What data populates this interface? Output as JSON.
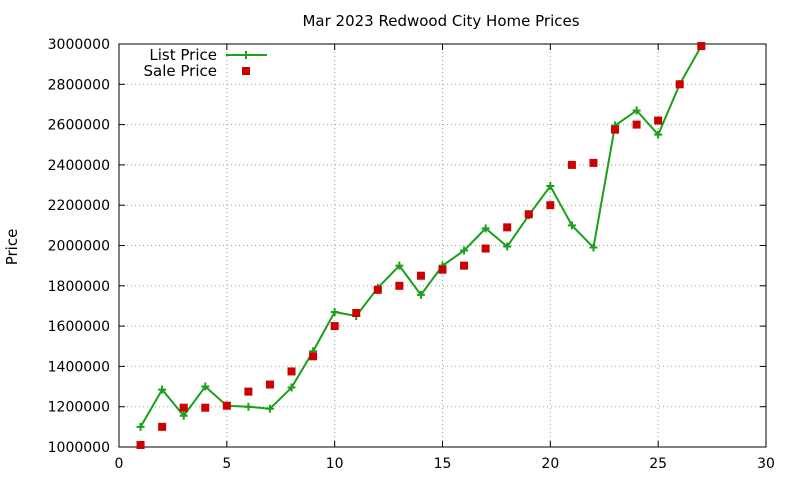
{
  "chart_data": {
    "type": "line",
    "title": "Mar 2023 Redwood City Home Prices",
    "xlabel": "",
    "ylabel": "Price",
    "xlim": [
      0,
      30
    ],
    "ylim": [
      1000000,
      3000000
    ],
    "x_ticks": [
      0,
      5,
      10,
      15,
      20,
      25,
      30
    ],
    "y_ticks": [
      1000000,
      1200000,
      1400000,
      1600000,
      1800000,
      2000000,
      2200000,
      2400000,
      2600000,
      2800000,
      3000000
    ],
    "grid": true,
    "legend_position": "top-left",
    "series": [
      {
        "name": "List Price",
        "style": "line-with-plus-markers",
        "color": "#1aa01a",
        "x": [
          1,
          2,
          3,
          4,
          5,
          6,
          7,
          8,
          9,
          10,
          11,
          12,
          13,
          14,
          15,
          16,
          17,
          18,
          19,
          20,
          21,
          22,
          23,
          24,
          25,
          26,
          27
        ],
        "values": [
          1100000,
          1285000,
          1155000,
          1300000,
          1205000,
          1200000,
          1190000,
          1295000,
          1475000,
          1670000,
          1650000,
          1790000,
          1900000,
          1755000,
          1900000,
          1975000,
          2085000,
          1995000,
          2150000,
          2295000,
          2100000,
          1990000,
          2595000,
          2670000,
          2550000,
          2800000,
          2990000
        ]
      },
      {
        "name": "Sale Price",
        "style": "square-markers",
        "color": "#cc0000",
        "x": [
          1,
          2,
          3,
          4,
          5,
          6,
          7,
          8,
          9,
          10,
          11,
          12,
          13,
          14,
          15,
          16,
          17,
          18,
          19,
          20,
          21,
          22,
          23,
          24,
          25,
          26,
          27
        ],
        "values": [
          1010000,
          1100000,
          1195000,
          1195000,
          1205000,
          1275000,
          1310000,
          1375000,
          1450000,
          1600000,
          1665000,
          1780000,
          1800000,
          1850000,
          1880000,
          1900000,
          1985000,
          2090000,
          2155000,
          2200000,
          2400000,
          2410000,
          2575000,
          2600000,
          2620000,
          2800000,
          2990000
        ]
      }
    ]
  }
}
